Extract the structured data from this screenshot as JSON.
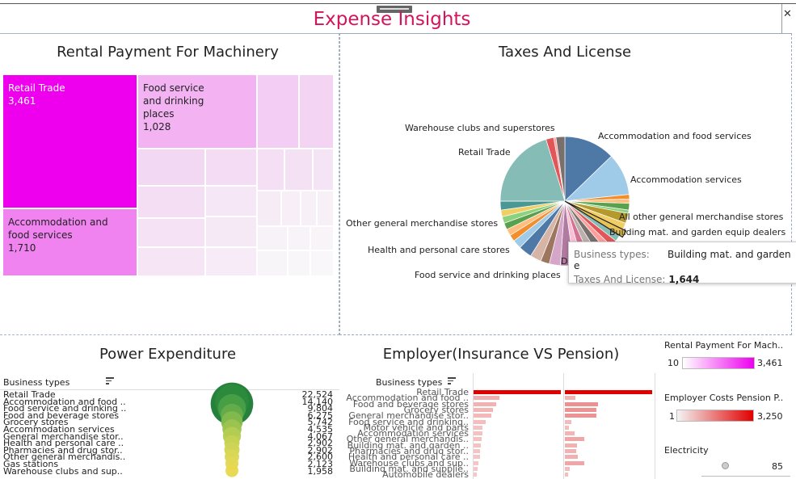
{
  "dashboard": {
    "title": "Expense Insights"
  },
  "rental": {
    "title": "Rental Payment For Machinery",
    "cells": [
      {
        "label": "Retail Trade",
        "value": "3,461"
      },
      {
        "label": "Food service and drinking places",
        "value": "1,028"
      },
      {
        "label": "Accommodation and food services",
        "value": "1,710"
      }
    ]
  },
  "taxes": {
    "title": "Taxes And License",
    "labels": [
      "Warehouse clubs and superstores",
      "Accommodation and food services",
      "Retail Trade",
      "Accommodation services",
      "All other general merchandise stores",
      "Other general merchandise stores",
      "Building mat. and garden equip dealers",
      "Health and personal care stores",
      "Food service and drinking places",
      "D"
    ],
    "tooltip": {
      "k1": "Business types:",
      "v1": "Building mat. and garden e",
      "k2": "Taxes And License:",
      "v2": "1,644"
    }
  },
  "power": {
    "title": "Power Expenditure",
    "header": "Business types",
    "rows": [
      {
        "name": "Retail Trade",
        "value": "22,524"
      },
      {
        "name": "Accommodation and food ..",
        "value": "14,140"
      },
      {
        "name": "Food service and drinking ..",
        "value": "9,804"
      },
      {
        "name": "Food and beverage stores",
        "value": "6,275"
      },
      {
        "name": "Grocery stores",
        "value": "5,742"
      },
      {
        "name": "Accommodation services",
        "value": "4,535"
      },
      {
        "name": "General merchandise stor..",
        "value": "4,067"
      },
      {
        "name": "Health and personal care ..",
        "value": "2,902"
      },
      {
        "name": "Pharmacies and drug stor..",
        "value": "2,902"
      },
      {
        "name": "Other general merchandis..",
        "value": "2,600"
      },
      {
        "name": "Gas stations",
        "value": "2,123"
      },
      {
        "name": "Warehouse clubs and sup..",
        "value": "1,958"
      }
    ]
  },
  "employer": {
    "title": "Employer(Insurance VS Pension)",
    "header": "Business types",
    "rows": [
      {
        "name": "Retail Trade",
        "ins": 1.0,
        "pen": 1.0
      },
      {
        "name": "Accommodation and food ..",
        "ins": 0.3,
        "pen": 0.12
      },
      {
        "name": "Food and beverage stores",
        "ins": 0.26,
        "pen": 0.38
      },
      {
        "name": "Grocery stores",
        "ins": 0.22,
        "pen": 0.36
      },
      {
        "name": "General merchandise stor..",
        "ins": 0.2,
        "pen": 0.36
      },
      {
        "name": "Food service and drinking..",
        "ins": 0.14,
        "pen": 0.07
      },
      {
        "name": "Motor vehicle and parts",
        "ins": 0.1,
        "pen": 0.05
      },
      {
        "name": "Accommodation services",
        "ins": 0.1,
        "pen": 0.11
      },
      {
        "name": "Other general merchandis..",
        "ins": 0.09,
        "pen": 0.22
      },
      {
        "name": "Building mat. and garden ..",
        "ins": 0.08,
        "pen": 0.14
      },
      {
        "name": "Pharmacies and drug stor..",
        "ins": 0.07,
        "pen": 0.13
      },
      {
        "name": "Health and personal care ..",
        "ins": 0.07,
        "pen": 0.15
      },
      {
        "name": "Warehouse clubs and sup..",
        "ins": 0.06,
        "pen": 0.22
      },
      {
        "name": "Building mat. and supplie..",
        "ins": 0.05,
        "pen": 0.06
      },
      {
        "name": "Automobile dealers",
        "ins": 0.04,
        "pen": 0.04
      }
    ]
  },
  "legends": {
    "rental": {
      "title": "Rental Payment For Mach..",
      "min": "10",
      "max": "3,461"
    },
    "pension": {
      "title": "Employer Costs Pension P..",
      "min": "1",
      "max": "3,250"
    },
    "electricity": {
      "title": "Electricity",
      "value": "85"
    }
  },
  "colors": {
    "title_pink": "#d4145a",
    "treemap_max": "#ee00ee",
    "pension_max": "#e00000",
    "power_green": "#1a7a33",
    "power_yellow": "#e8d44d"
  }
}
